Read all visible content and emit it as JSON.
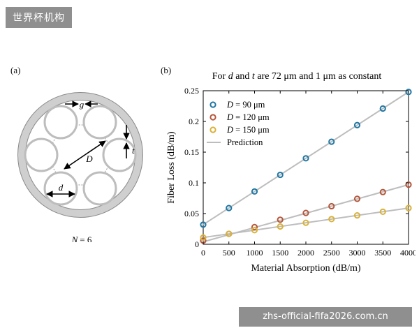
{
  "watermarks": {
    "top": "世界杯机构",
    "bottom": "zhs-official-fifa2026.com.cn"
  },
  "panel_a": {
    "tag": "(a)",
    "label_g": "g",
    "label_t": "t",
    "label_D": "D",
    "label_d": "d",
    "caption_lhs": "N",
    "caption_rhs": "= 6",
    "colors": {
      "ring": "#cfcfcf",
      "tube": "#c9c9c9",
      "arrow": "#000000"
    }
  },
  "panel_b": {
    "tag": "(b)",
    "title_pre": "For ",
    "title_d": "d",
    "title_mid": " and ",
    "title_t": "t",
    "title_post": "  are 72 μm and 1 μm as constant"
  },
  "chart_data": {
    "type": "scatter",
    "xlabel": "Material Absorption (dB/m)",
    "ylabel": "Fiber Loss (dB/m)",
    "xlim": [
      0,
      4000
    ],
    "ylim": [
      0,
      0.25
    ],
    "x_ticks": [
      "0",
      "500",
      "1000",
      "1500",
      "2000",
      "2500",
      "3000",
      "3500",
      "4000"
    ],
    "y_ticks": [
      "0",
      "0.05",
      "0.1",
      "0.15",
      "0.2",
      "0.25"
    ],
    "x": [
      0,
      500,
      1000,
      1500,
      2000,
      2500,
      3000,
      3500,
      4000
    ],
    "series": [
      {
        "name_var": "D",
        "name_rest": " = 90 μm",
        "color": "#1f77a4",
        "values": [
          0.032,
          0.059,
          0.086,
          0.113,
          0.14,
          0.167,
          0.194,
          0.221,
          0.248
        ]
      },
      {
        "name_var": "D",
        "name_rest": " = 120 μm",
        "color": "#b5563a",
        "values": [
          0.006,
          0.017,
          0.028,
          0.04,
          0.051,
          0.062,
          0.074,
          0.085,
          0.097
        ]
      },
      {
        "name_var": "D",
        "name_rest": " = 150 μm",
        "color": "#d9b23a",
        "values": [
          0.011,
          0.017,
          0.023,
          0.029,
          0.035,
          0.041,
          0.047,
          0.053,
          0.059
        ]
      }
    ],
    "prediction": {
      "name": "Prediction",
      "color": "#bdbdbd",
      "lines": [
        [
          0.032,
          0.248
        ],
        [
          0.004,
          0.097
        ],
        [
          0.011,
          0.059
        ]
      ]
    },
    "legend_position": "top-left",
    "grid": false
  }
}
